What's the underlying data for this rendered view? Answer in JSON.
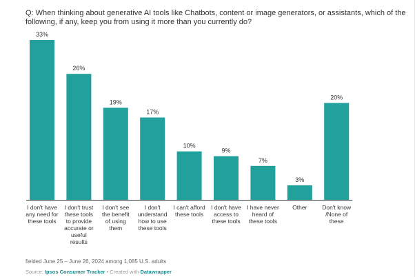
{
  "question": "Q: When thinking about generative AI tools like Chatbots, content or image generators, or assistants, which of the following, if any, keep you from using it more than you currently do?",
  "footnote": "fielded June 25 – June 26, 2024 among 1,085 U.S. adults",
  "source": {
    "prefix": "Source: ",
    "publisher": "Ipsos Consumer Tracker",
    "middle": " • Created with ",
    "tool": "Datawrapper"
  },
  "colors": {
    "bar": "#22A09C",
    "axis": "#333333"
  },
  "chart_data": {
    "type": "bar",
    "title": "",
    "xlabel": "",
    "ylabel": "",
    "ylim": [
      0,
      33
    ],
    "value_suffix": "%",
    "categories": [
      [
        "I don't have",
        "any need for",
        "these tools"
      ],
      [
        "I don't trust",
        "these tools",
        "to provide",
        "accurate or",
        "useful",
        "results"
      ],
      [
        "I don't see",
        "the benefit",
        "of using",
        "them"
      ],
      [
        "I don't",
        "understand",
        "how to use",
        "these tools"
      ],
      [
        "I can't afford",
        "these tools"
      ],
      [
        "I don't have",
        "access to",
        "these tools"
      ],
      [
        "I have never",
        "heard of",
        "these tools"
      ],
      [
        "Other"
      ],
      [
        "Don't know",
        "/None of",
        "these"
      ]
    ],
    "values": [
      33,
      26,
      19,
      17,
      10,
      9,
      7,
      3,
      20
    ],
    "value_labels": [
      "33%",
      "26%",
      "19%",
      "17%",
      "10%",
      "9%",
      "7%",
      "3%",
      "20%"
    ],
    "grid": false,
    "legend": "none"
  }
}
